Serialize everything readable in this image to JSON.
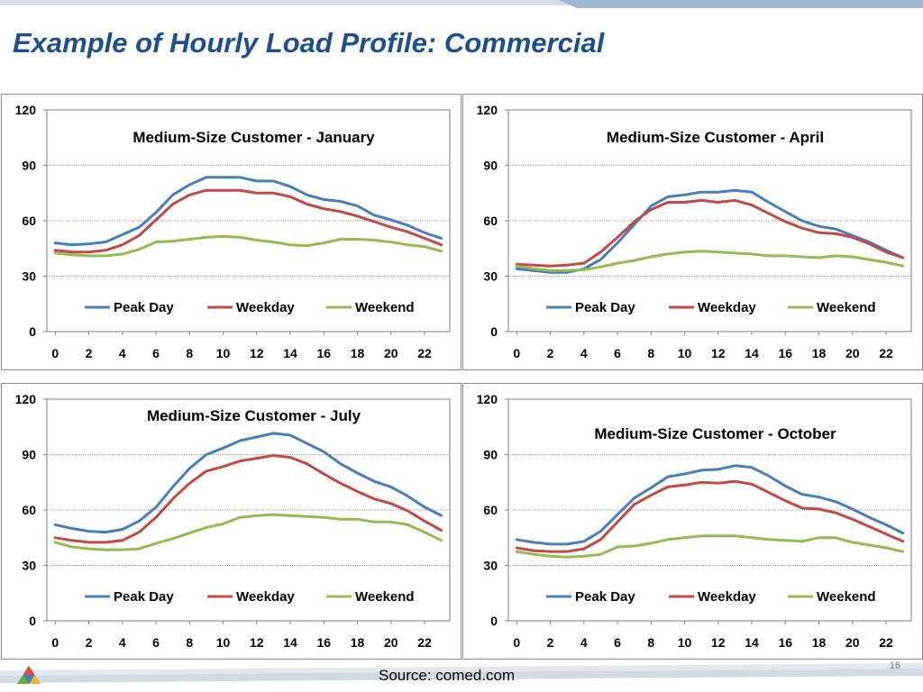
{
  "slide": {
    "title": "Example of Hourly Load Profile:  Commercial",
    "source": "Source:  comed.com",
    "page_number": "16"
  },
  "colors": {
    "title": "#1f4e8c",
    "peak_day": "#4a7ebb",
    "weekday": "#be4b48",
    "weekend": "#98b954",
    "band_light": "#d5dde7",
    "band_dark": "#9db6d2"
  },
  "legend": [
    "Peak Day",
    "Weekday",
    "Weekend"
  ],
  "chart_data": [
    {
      "type": "line",
      "title": "Medium-Size Customer - January",
      "x": [
        0,
        1,
        2,
        3,
        4,
        5,
        6,
        7,
        8,
        9,
        10,
        11,
        12,
        13,
        14,
        15,
        16,
        17,
        18,
        19,
        20,
        21,
        22,
        23
      ],
      "x_ticks": [
        "0",
        "2",
        "4",
        "6",
        "8",
        "10",
        "12",
        "14",
        "16",
        "18",
        "20",
        "22"
      ],
      "ylim": [
        0,
        120
      ],
      "y_ticks": [
        "0",
        "30",
        "60",
        "90",
        "120"
      ],
      "grid": true,
      "legend_position": "bottom-inside",
      "series": [
        {
          "name": "Peak Day",
          "values": [
            48,
            47,
            47.5,
            48.5,
            52.5,
            56.5,
            64.5,
            74,
            79.5,
            83.5,
            83.5,
            83.5,
            81.5,
            81.5,
            78.5,
            74,
            71.5,
            70.5,
            68,
            63,
            60.5,
            57.5,
            53.5,
            50.5
          ]
        },
        {
          "name": "Weekday",
          "values": [
            44,
            43,
            43,
            44,
            47,
            52,
            60.5,
            69,
            74,
            76.5,
            76.5,
            76.5,
            75,
            75,
            73,
            69,
            66.5,
            65,
            62.5,
            59.5,
            56.5,
            54,
            50.5,
            47
          ]
        },
        {
          "name": "Weekend",
          "values": [
            42.5,
            41.5,
            41,
            41,
            42,
            44.5,
            48.5,
            49,
            50,
            51,
            51.5,
            51,
            49.5,
            48.5,
            47,
            46.5,
            48,
            50,
            50,
            49.5,
            48.5,
            47,
            46,
            43.5
          ]
        }
      ]
    },
    {
      "type": "line",
      "title": "Medium-Size Customer - April",
      "x": [
        0,
        1,
        2,
        3,
        4,
        5,
        6,
        7,
        8,
        9,
        10,
        11,
        12,
        13,
        14,
        15,
        16,
        17,
        18,
        19,
        20,
        21,
        22,
        23
      ],
      "x_ticks": [
        "0",
        "2",
        "4",
        "6",
        "8",
        "10",
        "12",
        "14",
        "16",
        "18",
        "20",
        "22"
      ],
      "ylim": [
        0,
        120
      ],
      "y_ticks": [
        "0",
        "30",
        "60",
        "90",
        "120"
      ],
      "grid": true,
      "legend_position": "bottom-inside",
      "series": [
        {
          "name": "Peak Day",
          "values": [
            34,
            33,
            32,
            32,
            34,
            39,
            48,
            58,
            68,
            73,
            74,
            75.5,
            75.5,
            76.5,
            75.5,
            70,
            65,
            60,
            57,
            55.5,
            52,
            48.5,
            44,
            40
          ]
        },
        {
          "name": "Weekday",
          "values": [
            36.5,
            36,
            35.5,
            36,
            37,
            43,
            51,
            59.5,
            66,
            70,
            70,
            71,
            70,
            71,
            68.5,
            64,
            59.5,
            56,
            53.5,
            53,
            51,
            47.5,
            43,
            40
          ]
        },
        {
          "name": "Weekend",
          "values": [
            35.5,
            34,
            33,
            33,
            33.5,
            35,
            37,
            38.5,
            40.5,
            42,
            43,
            43.5,
            43,
            42.5,
            42,
            41,
            41,
            40.5,
            40,
            41,
            40.5,
            39,
            37.5,
            35.5
          ]
        }
      ]
    },
    {
      "type": "line",
      "title": "Medium-Size Customer - July",
      "x": [
        0,
        1,
        2,
        3,
        4,
        5,
        6,
        7,
        8,
        9,
        10,
        11,
        12,
        13,
        14,
        15,
        16,
        17,
        18,
        19,
        20,
        21,
        22,
        23
      ],
      "x_ticks": [
        "0",
        "2",
        "4",
        "6",
        "8",
        "10",
        "12",
        "14",
        "16",
        "18",
        "20",
        "22"
      ],
      "ylim": [
        0,
        120
      ],
      "y_ticks": [
        "0",
        "30",
        "60",
        "90",
        "120"
      ],
      "grid": true,
      "legend_position": "bottom-inside",
      "series": [
        {
          "name": "Peak Day",
          "values": [
            52,
            50,
            48.5,
            48,
            49.5,
            54,
            61.5,
            72.5,
            82.5,
            90,
            93.5,
            97.5,
            99.5,
            101.5,
            100.5,
            96,
            91.5,
            85,
            80,
            75.5,
            72.5,
            67.5,
            61.5,
            57
          ]
        },
        {
          "name": "Weekday",
          "values": [
            45,
            43.5,
            42.5,
            42.5,
            43.5,
            48,
            56,
            66,
            74.5,
            81,
            83.5,
            86.5,
            88,
            89.5,
            88.5,
            85,
            79.5,
            74.5,
            70,
            66,
            63.5,
            59.5,
            54,
            49
          ]
        },
        {
          "name": "Weekend",
          "values": [
            42.5,
            40,
            39,
            38.5,
            38.5,
            39,
            42,
            44.5,
            47.5,
            50.5,
            52.5,
            56,
            57,
            57.5,
            57,
            56.5,
            56,
            55,
            55,
            53.5,
            53.5,
            52,
            48,
            43.5
          ]
        }
      ]
    },
    {
      "type": "line",
      "title": "Medium-Size Customer - October",
      "x": [
        0,
        1,
        2,
        3,
        4,
        5,
        6,
        7,
        8,
        9,
        10,
        11,
        12,
        13,
        14,
        15,
        16,
        17,
        18,
        19,
        20,
        21,
        22,
        23
      ],
      "x_ticks": [
        "0",
        "2",
        "4",
        "6",
        "8",
        "10",
        "12",
        "14",
        "16",
        "18",
        "20",
        "22"
      ],
      "ylim": [
        0,
        120
      ],
      "y_ticks": [
        "0",
        "30",
        "60",
        "90",
        "120"
      ],
      "grid": true,
      "legend_position": "bottom-inside",
      "series": [
        {
          "name": "Peak Day",
          "values": [
            44,
            42.5,
            41.5,
            41.5,
            43,
            48.5,
            57.5,
            66.5,
            72,
            78,
            79.5,
            81.5,
            82,
            84,
            83,
            78.5,
            73,
            68.5,
            67,
            64.5,
            60.5,
            56,
            52,
            47.5
          ]
        },
        {
          "name": "Weekday",
          "values": [
            39.5,
            38,
            37.5,
            37.5,
            39,
            44,
            53.5,
            63,
            68,
            72.5,
            73.5,
            75,
            74.5,
            75.5,
            74,
            69.5,
            65,
            61,
            60.5,
            58.5,
            55,
            51,
            47,
            43
          ]
        },
        {
          "name": "Weekend",
          "values": [
            37.5,
            36,
            35,
            34.5,
            35,
            36,
            40,
            40.5,
            42,
            44,
            45,
            46,
            46,
            46,
            45,
            44,
            43.5,
            43,
            45,
            45,
            42.5,
            41,
            39.5,
            37.5
          ]
        }
      ]
    }
  ]
}
